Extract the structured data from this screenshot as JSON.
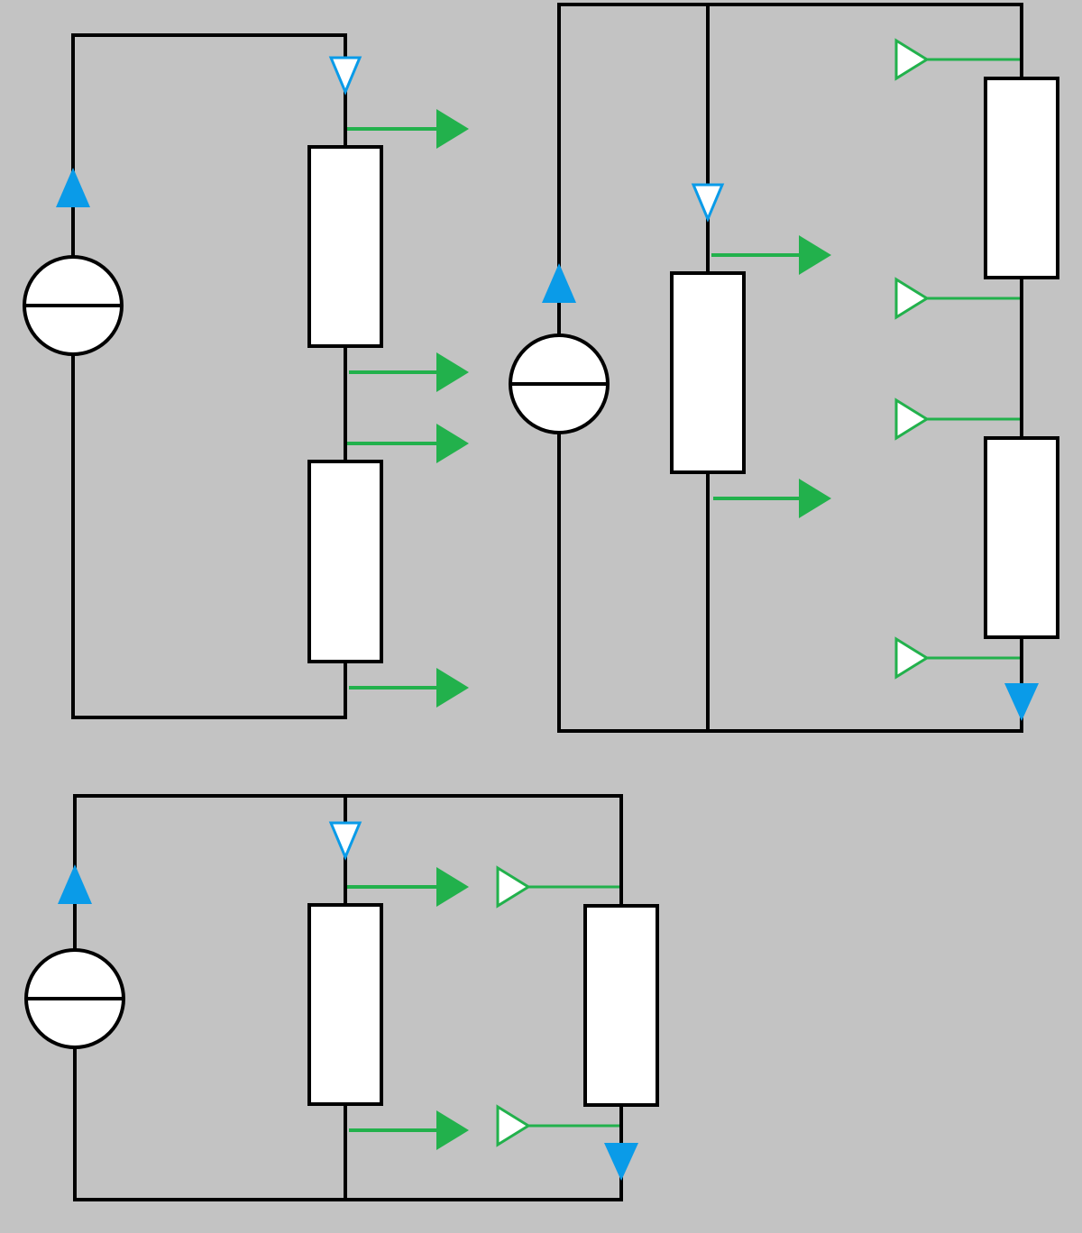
{
  "colors": {
    "background": "#c3c3c3",
    "wire": "#000000",
    "component_fill": "#ffffff",
    "current_arrow": "#0a9be8",
    "measurement_arrow": "#22b14c"
  },
  "circuits": [
    {
      "id": "series",
      "components": [
        {
          "type": "current-source",
          "icon": "current-source-icon"
        },
        {
          "type": "resistor",
          "icon": "resistor-icon"
        },
        {
          "type": "resistor",
          "icon": "resistor-icon"
        }
      ],
      "markers": {
        "current_in": "hollow-down",
        "current_source": "filled-up",
        "measurement_arrows": 4
      }
    },
    {
      "id": "parallel-series",
      "components": [
        {
          "type": "current-source",
          "icon": "current-source-icon"
        },
        {
          "type": "resistor",
          "icon": "resistor-icon"
        },
        {
          "type": "resistor",
          "icon": "resistor-icon"
        },
        {
          "type": "resistor",
          "icon": "resistor-icon"
        }
      ],
      "markers": {
        "current_in": "hollow-down",
        "current_source": "filled-up",
        "current_out": "filled-down",
        "measurement_arrows": 2,
        "probe_arrows": 4
      }
    },
    {
      "id": "parallel",
      "components": [
        {
          "type": "current-source",
          "icon": "current-source-icon"
        },
        {
          "type": "resistor",
          "icon": "resistor-icon"
        },
        {
          "type": "resistor",
          "icon": "resistor-icon"
        }
      ],
      "markers": {
        "current_in": "hollow-down",
        "current_source": "filled-up",
        "current_out": "filled-down",
        "measurement_arrows": 2,
        "probe_arrows": 2
      }
    }
  ]
}
